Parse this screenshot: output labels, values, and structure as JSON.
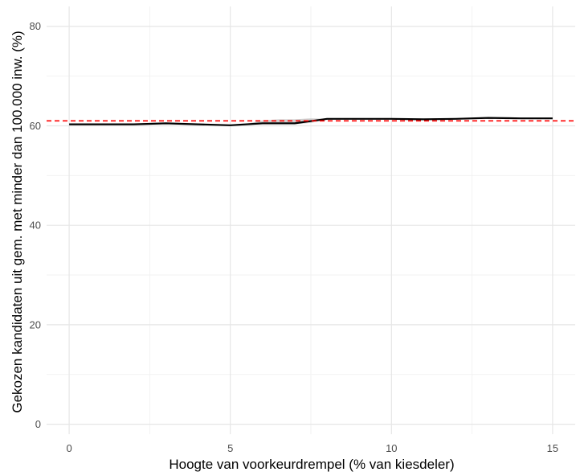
{
  "chart_data": {
    "type": "line",
    "title": "",
    "xlabel": "Hoogte van voorkeurdrempel (% van kiesdeler)",
    "ylabel": "Gekozen kandidaten uit gem. met minder dan 100.000 inw. (%)",
    "xlim": [
      -0.7,
      15.7
    ],
    "ylim": [
      -2,
      84
    ],
    "x_ticks": [
      0,
      5,
      10,
      15
    ],
    "y_ticks": [
      0,
      20,
      40,
      60,
      80
    ],
    "x_minor_ticks": [
      2.5,
      7.5,
      12.5
    ],
    "y_minor_ticks": [
      10,
      30,
      50,
      70
    ],
    "grid": true,
    "legend": "none",
    "series": [
      {
        "color": "#000000",
        "style": "solid",
        "x": [
          0,
          1,
          2,
          3,
          4,
          5,
          6,
          7,
          8,
          9,
          10,
          11,
          12,
          13,
          14,
          15
        ],
        "y": [
          60.3,
          60.3,
          60.3,
          60.5,
          60.3,
          60.1,
          60.5,
          60.5,
          61.4,
          61.4,
          61.4,
          61.3,
          61.4,
          61.6,
          61.5,
          61.5
        ]
      }
    ],
    "confidence_band": {
      "color": "#bfbfbf",
      "x": [
        5.5,
        6,
        6.5,
        7,
        7.5,
        8,
        8.5
      ],
      "lower": [
        60.2,
        60.4,
        60.4,
        60.3,
        60.6,
        61.2,
        61.4
      ],
      "upper": [
        60.4,
        61.1,
        61.3,
        61.3,
        61.5,
        61.4,
        61.4
      ]
    },
    "reference_line": {
      "y": 61,
      "color": "#ff0000",
      "style": "dashed"
    }
  }
}
